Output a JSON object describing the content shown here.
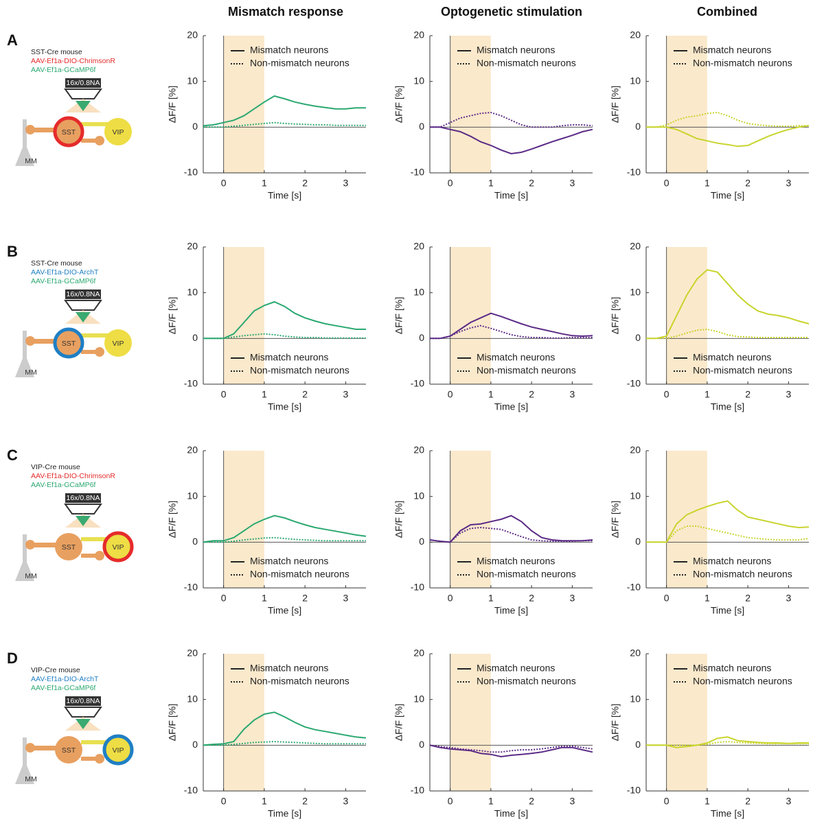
{
  "column_titles": [
    "Mismatch response",
    "Optogenetic stimulation",
    "Combined"
  ],
  "rows": [
    {
      "letter": "A",
      "mouse": "SST-Cre mouse",
      "opsin": "AAV-Ef1a-DIO-ChrimsonR",
      "indicator": "AAV-Ef1a-GCaMP6f",
      "objective": "16x/0.8NA",
      "cell1": "SST",
      "cell2": "VIP",
      "cell3": "MM"
    },
    {
      "letter": "B",
      "mouse": "SST-Cre mouse",
      "opsin": "AAV-Ef1a-DIO-ArchT",
      "indicator": "AAV-Ef1a-GCaMP6f",
      "objective": "16x/0.8NA",
      "cell1": "SST",
      "cell2": "VIP",
      "cell3": "MM"
    },
    {
      "letter": "C",
      "mouse": "VIP-Cre mouse",
      "opsin": "AAV-Ef1a-DIO-ChrimsonR",
      "indicator": "AAV-Ef1a-GCaMP6f",
      "objective": "16x/0.8NA",
      "cell1": "SST",
      "cell2": "VIP",
      "cell3": "MM"
    },
    {
      "letter": "D",
      "mouse": "VIP-Cre mouse",
      "opsin": "AAV-Ef1a-DIO-ArchT",
      "indicator": "AAV-Ef1a-GCaMP6f",
      "objective": "16x/0.8NA",
      "cell1": "SST",
      "cell2": "VIP",
      "cell3": "MM"
    }
  ],
  "chart_data": [
    {
      "type": "line",
      "xlabel": "Time [s]",
      "ylabel": "ΔF/F [%]",
      "xlim": [
        -0.5,
        3.5
      ],
      "ylim": [
        -10,
        20
      ],
      "xticks": [
        0,
        1,
        2,
        3
      ],
      "yticks": [
        -10,
        0,
        10,
        20
      ],
      "highlight": [
        0,
        1
      ],
      "legend": "upper",
      "x": [
        -0.5,
        -0.25,
        0,
        0.25,
        0.5,
        0.75,
        1,
        1.25,
        1.5,
        1.75,
        2,
        2.25,
        2.5,
        2.75,
        3,
        3.25,
        3.5
      ],
      "series": [
        {
          "name": "Mismatch neurons",
          "color": "#2aa870",
          "linestyle": "solid",
          "values": [
            0.3,
            0.5,
            1,
            1.5,
            2.5,
            4,
            5.5,
            6.8,
            6.2,
            5.5,
            5,
            4.6,
            4.3,
            4,
            4,
            4.2,
            4.2
          ]
        },
        {
          "name": "Non-mismatch neurons",
          "color": "#2aa870",
          "linestyle": "dotted",
          "values": [
            0,
            0,
            0,
            0.2,
            0.4,
            0.6,
            0.8,
            1,
            0.8,
            0.7,
            0.6,
            0.5,
            0.5,
            0.4,
            0.4,
            0.4,
            0.4
          ]
        }
      ]
    },
    {
      "type": "line",
      "xlabel": "Time [s]",
      "ylabel": "ΔF/F [%]",
      "xlim": [
        -0.5,
        3.5
      ],
      "ylim": [
        -10,
        20
      ],
      "xticks": [
        0,
        1,
        2,
        3
      ],
      "yticks": [
        -10,
        0,
        10,
        20
      ],
      "highlight": [
        0,
        1
      ],
      "legend": "upper",
      "x": [
        -0.5,
        -0.25,
        0,
        0.25,
        0.5,
        0.75,
        1,
        1.25,
        1.5,
        1.75,
        2,
        2.25,
        2.5,
        2.75,
        3,
        3.25,
        3.5
      ],
      "series": [
        {
          "name": "Mismatch neurons",
          "color": "#5b2a86",
          "linestyle": "solid",
          "values": [
            0,
            0,
            -0.5,
            -1,
            -2,
            -3.2,
            -4,
            -5,
            -5.8,
            -5.5,
            -4.8,
            -4,
            -3.2,
            -2.5,
            -1.8,
            -1,
            -0.5
          ]
        },
        {
          "name": "Non-mismatch neurons",
          "color": "#5b2a86",
          "linestyle": "dotted",
          "values": [
            0,
            0,
            1,
            2,
            2.5,
            3,
            3.2,
            2.5,
            1.5,
            0.5,
            0,
            0,
            0,
            0.3,
            0.5,
            0.5,
            0.3
          ]
        }
      ]
    },
    {
      "type": "line",
      "xlabel": "Time [s]",
      "ylabel": "ΔF/F [%]",
      "xlim": [
        -0.5,
        3.5
      ],
      "ylim": [
        -10,
        20
      ],
      "xticks": [
        0,
        1,
        2,
        3
      ],
      "yticks": [
        -10,
        0,
        10,
        20
      ],
      "highlight": [
        0,
        1
      ],
      "legend": "upper",
      "x": [
        -0.5,
        -0.25,
        0,
        0.25,
        0.5,
        0.75,
        1,
        1.25,
        1.5,
        1.75,
        2,
        2.25,
        2.5,
        2.75,
        3,
        3.25,
        3.5
      ],
      "series": [
        {
          "name": "Mismatch neurons",
          "color": "#c8d42c",
          "linestyle": "solid",
          "values": [
            0,
            0,
            0,
            -0.5,
            -1.5,
            -2.5,
            -3,
            -3.5,
            -3.8,
            -4.2,
            -4,
            -3,
            -2,
            -1.2,
            -0.5,
            0,
            0.3
          ]
        },
        {
          "name": "Non-mismatch neurons",
          "color": "#c8d42c",
          "linestyle": "dotted",
          "values": [
            0,
            0,
            0.5,
            1.5,
            2.2,
            2.5,
            3,
            3.2,
            2.5,
            1.5,
            0.8,
            0.5,
            0.3,
            0.2,
            0.2,
            0.3,
            0.3
          ]
        }
      ]
    },
    {
      "type": "line",
      "xlabel": "Time [s]",
      "ylabel": "ΔF/F [%]",
      "xlim": [
        -0.5,
        3.5
      ],
      "ylim": [
        -10,
        20
      ],
      "xticks": [
        0,
        1,
        2,
        3
      ],
      "yticks": [
        -10,
        0,
        10,
        20
      ],
      "highlight": [
        0,
        1
      ],
      "legend": "lower",
      "x": [
        -0.5,
        -0.25,
        0,
        0.25,
        0.5,
        0.75,
        1,
        1.25,
        1.5,
        1.75,
        2,
        2.25,
        2.5,
        2.75,
        3,
        3.25,
        3.5
      ],
      "series": [
        {
          "name": "Mismatch neurons",
          "color": "#2aa870",
          "linestyle": "solid",
          "values": [
            0,
            0,
            0,
            1,
            3.5,
            6,
            7.2,
            8,
            7,
            5.5,
            4.5,
            3.8,
            3.2,
            2.8,
            2.4,
            2,
            2
          ]
        },
        {
          "name": "Non-mismatch neurons",
          "color": "#2aa870",
          "linestyle": "dotted",
          "values": [
            0,
            0,
            0,
            0.3,
            0.6,
            0.8,
            1,
            0.8,
            0.5,
            0.3,
            0.2,
            0.2,
            0.1,
            0.1,
            0.1,
            0.1,
            0.1
          ]
        }
      ]
    },
    {
      "type": "line",
      "xlabel": "Time [s]",
      "ylabel": "ΔF/F [%]",
      "xlim": [
        -0.5,
        3.5
      ],
      "ylim": [
        -10,
        20
      ],
      "xticks": [
        0,
        1,
        2,
        3
      ],
      "yticks": [
        -10,
        0,
        10,
        20
      ],
      "highlight": [
        0,
        1
      ],
      "legend": "lower",
      "x": [
        -0.5,
        -0.25,
        0,
        0.25,
        0.5,
        0.75,
        1,
        1.25,
        1.5,
        1.75,
        2,
        2.25,
        2.5,
        2.75,
        3,
        3.25,
        3.5
      ],
      "series": [
        {
          "name": "Mismatch neurons",
          "color": "#5b2a86",
          "linestyle": "solid",
          "values": [
            0,
            0,
            0.5,
            2,
            3.5,
            4.5,
            5.5,
            4.8,
            4,
            3.2,
            2.5,
            2,
            1.5,
            1,
            0.6,
            0.5,
            0.6
          ]
        },
        {
          "name": "Non-mismatch neurons",
          "color": "#5b2a86",
          "linestyle": "dotted",
          "values": [
            0,
            0,
            0.5,
            1.5,
            2.3,
            2.8,
            2.2,
            1.5,
            0.8,
            0.4,
            0.2,
            0.2,
            0.1,
            0.1,
            0.2,
            0.2,
            0.2
          ]
        }
      ]
    },
    {
      "type": "line",
      "xlabel": "Time [s]",
      "ylabel": "ΔF/F [%]",
      "xlim": [
        -0.5,
        3.5
      ],
      "ylim": [
        -10,
        20
      ],
      "xticks": [
        0,
        1,
        2,
        3
      ],
      "yticks": [
        -10,
        0,
        10,
        20
      ],
      "highlight": [
        0,
        1
      ],
      "legend": "lower",
      "x": [
        -0.5,
        -0.25,
        0,
        0.25,
        0.5,
        0.75,
        1,
        1.25,
        1.5,
        1.75,
        2,
        2.25,
        2.5,
        2.75,
        3,
        3.25,
        3.5
      ],
      "series": [
        {
          "name": "Mismatch neurons",
          "color": "#c8d42c",
          "linestyle": "solid",
          "values": [
            0,
            0,
            0.5,
            5,
            9.5,
            13,
            15,
            14.5,
            12,
            9.5,
            7.5,
            6,
            5.3,
            5,
            4.5,
            3.8,
            3.2
          ]
        },
        {
          "name": "Non-mismatch neurons",
          "color": "#c8d42c",
          "linestyle": "dotted",
          "values": [
            0,
            0,
            0,
            0.5,
            1.2,
            1.8,
            2,
            1.5,
            0.8,
            0.4,
            0.3,
            0.2,
            0.2,
            0.2,
            0.2,
            0.2,
            0.2
          ]
        }
      ]
    },
    {
      "type": "line",
      "xlabel": "Time [s]",
      "ylabel": "ΔF/F [%]",
      "xlim": [
        -0.5,
        3.5
      ],
      "ylim": [
        -10,
        20
      ],
      "xticks": [
        0,
        1,
        2,
        3
      ],
      "yticks": [
        -10,
        0,
        10,
        20
      ],
      "highlight": [
        0,
        1
      ],
      "legend": "lower",
      "x": [
        -0.5,
        -0.25,
        0,
        0.25,
        0.5,
        0.75,
        1,
        1.25,
        1.5,
        1.75,
        2,
        2.25,
        2.5,
        2.75,
        3,
        3.25,
        3.5
      ],
      "series": [
        {
          "name": "Mismatch neurons",
          "color": "#2aa870",
          "linestyle": "solid",
          "values": [
            0,
            0.3,
            0.3,
            1,
            2.5,
            4,
            5,
            5.8,
            5.3,
            4.5,
            3.8,
            3.2,
            2.8,
            2.4,
            2,
            1.6,
            1.3
          ]
        },
        {
          "name": "Non-mismatch neurons",
          "color": "#2aa870",
          "linestyle": "dotted",
          "values": [
            0,
            0,
            0,
            0.2,
            0.5,
            0.7,
            0.9,
            1,
            0.8,
            0.6,
            0.5,
            0.4,
            0.3,
            0.3,
            0.3,
            0.3,
            0.3
          ]
        }
      ]
    },
    {
      "type": "line",
      "xlabel": "Time [s]",
      "ylabel": "ΔF/F [%]",
      "xlim": [
        -0.5,
        3.5
      ],
      "ylim": [
        -10,
        20
      ],
      "xticks": [
        0,
        1,
        2,
        3
      ],
      "yticks": [
        -10,
        0,
        10,
        20
      ],
      "highlight": [
        0,
        1
      ],
      "legend": "lower",
      "x": [
        -0.5,
        -0.25,
        0,
        0.25,
        0.5,
        0.75,
        1,
        1.25,
        1.5,
        1.75,
        2,
        2.25,
        2.5,
        2.75,
        3,
        3.25,
        3.5
      ],
      "series": [
        {
          "name": "Mismatch neurons",
          "color": "#5b2a86",
          "linestyle": "solid",
          "values": [
            0.5,
            0.2,
            0,
            2.5,
            3.8,
            4,
            4.5,
            5,
            5.8,
            4.5,
            2.5,
            1,
            0.5,
            0.3,
            0.3,
            0.3,
            0.5
          ]
        },
        {
          "name": "Non-mismatch neurons",
          "color": "#5b2a86",
          "linestyle": "dotted",
          "values": [
            0.5,
            0.2,
            0,
            2,
            3,
            3.2,
            3,
            2.8,
            2,
            1.2,
            0.5,
            0.3,
            0.2,
            0.2,
            0.2,
            0.3,
            0.3
          ]
        }
      ]
    },
    {
      "type": "line",
      "xlabel": "Time [s]",
      "ylabel": "ΔF/F [%]",
      "xlim": [
        -0.5,
        3.5
      ],
      "ylim": [
        -10,
        20
      ],
      "xticks": [
        0,
        1,
        2,
        3
      ],
      "yticks": [
        -10,
        0,
        10,
        20
      ],
      "highlight": [
        0,
        1
      ],
      "legend": "lower",
      "x": [
        -0.5,
        -0.25,
        0,
        0.25,
        0.5,
        0.75,
        1,
        1.25,
        1.5,
        1.75,
        2,
        2.25,
        2.5,
        2.75,
        3,
        3.25,
        3.5
      ],
      "series": [
        {
          "name": "Mismatch neurons",
          "color": "#c8d42c",
          "linestyle": "solid",
          "values": [
            0,
            0,
            0,
            4,
            6,
            7,
            7.8,
            8.5,
            9,
            7,
            5.5,
            5,
            4.5,
            4,
            3.5,
            3.2,
            3.3
          ]
        },
        {
          "name": "Non-mismatch neurons",
          "color": "#c8d42c",
          "linestyle": "dotted",
          "values": [
            0,
            0,
            0,
            2.5,
            3.5,
            3.5,
            3,
            2.5,
            2,
            1.5,
            1,
            0.8,
            0.6,
            0.5,
            0.5,
            0.5,
            0.8
          ]
        }
      ]
    },
    {
      "type": "line",
      "xlabel": "Time [s]",
      "ylabel": "ΔF/F [%]",
      "xlim": [
        -0.5,
        3.5
      ],
      "ylim": [
        -10,
        20
      ],
      "xticks": [
        0,
        1,
        2,
        3
      ],
      "yticks": [
        -10,
        0,
        10,
        20
      ],
      "highlight": [
        0,
        1
      ],
      "legend": "upper",
      "x": [
        -0.5,
        -0.25,
        0,
        0.25,
        0.5,
        0.75,
        1,
        1.25,
        1.5,
        1.75,
        2,
        2.25,
        2.5,
        2.75,
        3,
        3.25,
        3.5
      ],
      "series": [
        {
          "name": "Mismatch neurons",
          "color": "#2aa870",
          "linestyle": "solid",
          "values": [
            0,
            0.2,
            0.3,
            0.8,
            3.5,
            5.5,
            6.8,
            7.2,
            6.2,
            5,
            4,
            3.4,
            3,
            2.6,
            2.2,
            1.8,
            1.6
          ]
        },
        {
          "name": "Non-mismatch neurons",
          "color": "#2aa870",
          "linestyle": "dotted",
          "values": [
            0,
            0,
            0,
            0.2,
            0.4,
            0.6,
            0.7,
            0.8,
            0.7,
            0.6,
            0.5,
            0.4,
            0.3,
            0.3,
            0.3,
            0.3,
            0.3
          ]
        }
      ]
    },
    {
      "type": "line",
      "xlabel": "Time [s]",
      "ylabel": "ΔF/F [%]",
      "xlim": [
        -0.5,
        3.5
      ],
      "ylim": [
        -10,
        20
      ],
      "xticks": [
        0,
        1,
        2,
        3
      ],
      "yticks": [
        -10,
        0,
        10,
        20
      ],
      "highlight": [
        0,
        1
      ],
      "legend": "upper",
      "x": [
        -0.5,
        -0.25,
        0,
        0.25,
        0.5,
        0.75,
        1,
        1.25,
        1.5,
        1.75,
        2,
        2.25,
        2.5,
        2.75,
        3,
        3.25,
        3.5
      ],
      "series": [
        {
          "name": "Mismatch neurons",
          "color": "#5b2a86",
          "linestyle": "solid",
          "values": [
            0,
            -0.5,
            -0.8,
            -1,
            -1.2,
            -1.8,
            -2,
            -2.5,
            -2.2,
            -2,
            -1.8,
            -1.5,
            -1,
            -0.5,
            -0.5,
            -1,
            -1.5
          ]
        },
        {
          "name": "Non-mismatch neurons",
          "color": "#5b2a86",
          "linestyle": "dotted",
          "values": [
            0,
            -0.3,
            -0.5,
            -0.8,
            -1,
            -1.2,
            -1.5,
            -1.5,
            -1.2,
            -1,
            -1,
            -0.8,
            -0.5,
            -0.2,
            -0.2,
            -0.5,
            -0.8
          ]
        }
      ]
    },
    {
      "type": "line",
      "xlabel": "Time [s]",
      "ylabel": "ΔF/F [%]",
      "xlim": [
        -0.5,
        3.5
      ],
      "ylim": [
        -10,
        20
      ],
      "xticks": [
        0,
        1,
        2,
        3
      ],
      "yticks": [
        -10,
        0,
        10,
        20
      ],
      "highlight": [
        0,
        1
      ],
      "legend": "upper",
      "x": [
        -0.5,
        -0.25,
        0,
        0.25,
        0.5,
        0.75,
        1,
        1.25,
        1.5,
        1.75,
        2,
        2.25,
        2.5,
        2.75,
        3,
        3.25,
        3.5
      ],
      "series": [
        {
          "name": "Mismatch neurons",
          "color": "#c8d42c",
          "linestyle": "solid",
          "values": [
            0,
            0,
            0,
            -0.5,
            -0.3,
            0,
            0.5,
            1.5,
            1.8,
            1,
            0.8,
            0.6,
            0.5,
            0.5,
            0.4,
            0.5,
            0.5
          ]
        },
        {
          "name": "Non-mismatch neurons",
          "color": "#c8d42c",
          "linestyle": "dotted",
          "values": [
            0,
            0,
            0,
            0,
            0,
            0,
            0.2,
            0.6,
            0.8,
            0.6,
            0.5,
            0.4,
            0.3,
            0.3,
            0.3,
            0.3,
            0.3
          ]
        }
      ]
    }
  ]
}
